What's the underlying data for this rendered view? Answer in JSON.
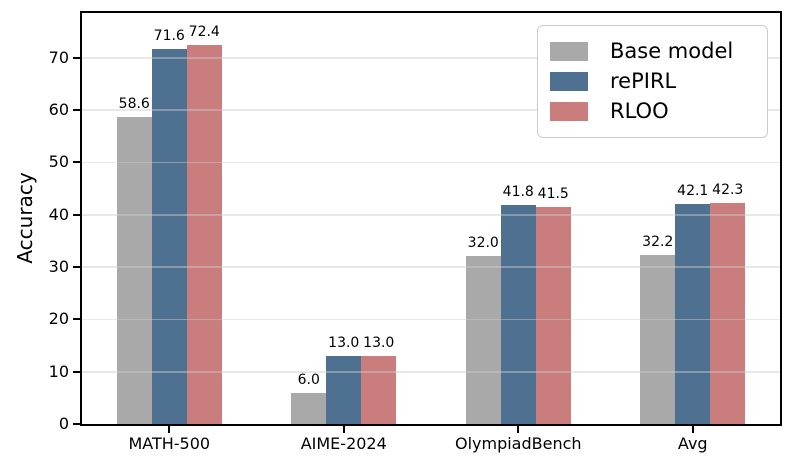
{
  "chart_data": {
    "type": "bar",
    "title": "",
    "xlabel": "",
    "ylabel": "Accuracy",
    "categories": [
      "MATH-500",
      "AIME-2024",
      "OlympiadBench",
      "Avg"
    ],
    "series": [
      {
        "name": "Base model",
        "color": "#a9a9a9",
        "values": [
          58.6,
          6.0,
          32.0,
          32.2
        ],
        "value_labels": [
          "58.6",
          "6.0",
          "32.0",
          "32.2"
        ]
      },
      {
        "name": "rePIRL",
        "color": "#4e7191",
        "values": [
          71.6,
          13.0,
          41.8,
          42.1
        ],
        "value_labels": [
          "71.6",
          "13.0",
          "41.8",
          "42.1"
        ]
      },
      {
        "name": "RLOO",
        "color": "#c97d7d",
        "values": [
          72.4,
          13.0,
          41.5,
          42.3
        ],
        "value_labels": [
          "72.4",
          "13.0",
          "41.5",
          "42.3"
        ]
      }
    ],
    "ylim": [
      0,
      78.5
    ],
    "yticks": [
      0,
      10,
      20,
      30,
      40,
      50,
      60,
      70
    ],
    "ytick_labels": [
      "0",
      "10",
      "20",
      "30",
      "40",
      "50",
      "60",
      "70"
    ],
    "grid": true,
    "legend_position": "upper right"
  },
  "colors": {
    "axis": "#000000",
    "gridline": "#cbcbcb",
    "legend_border": "#cccccc"
  }
}
